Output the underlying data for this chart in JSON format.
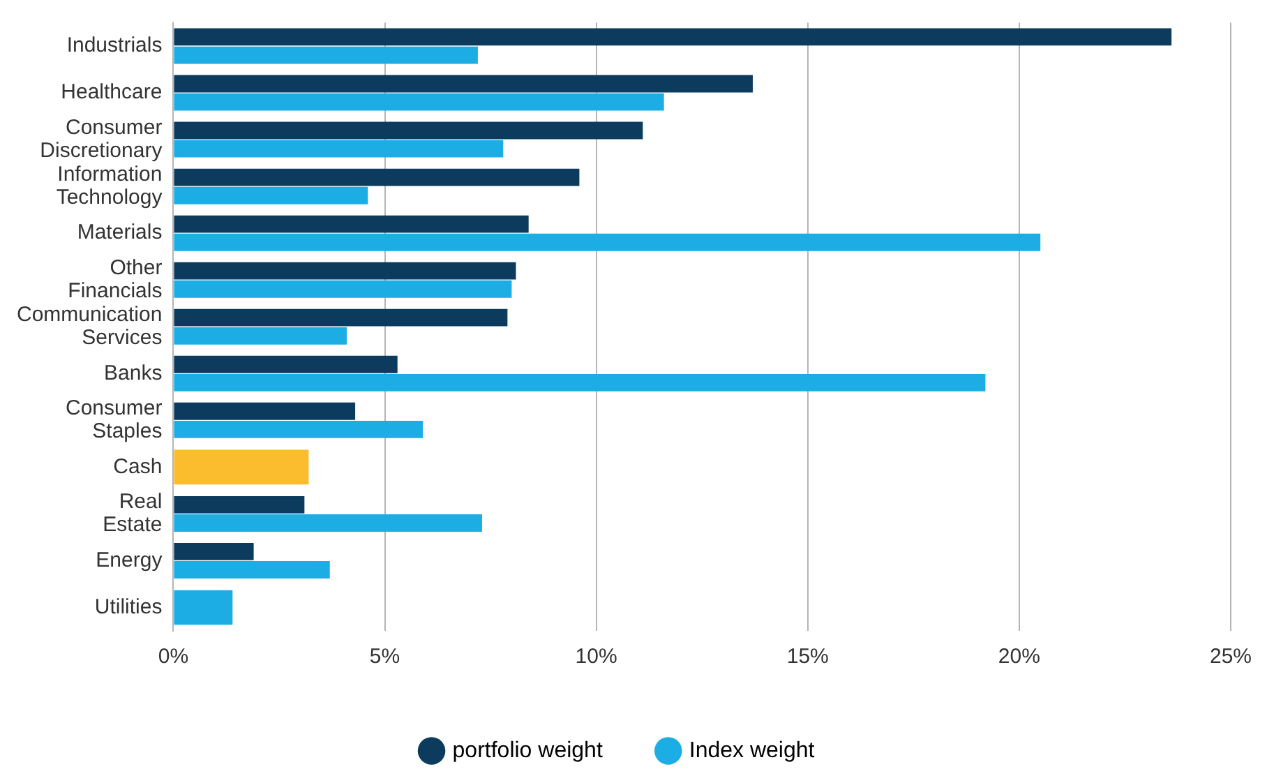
{
  "chart_data": {
    "type": "bar",
    "orientation": "horizontal",
    "categories": [
      "Industrials",
      "Healthcare",
      "Consumer Discretionary",
      "Information Technology",
      "Materials",
      "Other Financials",
      "Communication Services",
      "Banks",
      "Consumer Staples",
      "Cash",
      "Real Estate",
      "Energy",
      "Utilities"
    ],
    "series": [
      {
        "name": "portfolio weight",
        "color": "#0c3b5e",
        "colors": [
          "#0c3b5e",
          "#0c3b5e",
          "#0c3b5e",
          "#0c3b5e",
          "#0c3b5e",
          "#0c3b5e",
          "#0c3b5e",
          "#0c3b5e",
          "#0c3b5e",
          "#fbbd2e",
          "#0c3b5e",
          "#0c3b5e",
          "#0c3b5e"
        ],
        "values": [
          23.6,
          13.7,
          11.1,
          9.6,
          8.4,
          8.1,
          7.9,
          5.3,
          4.3,
          3.2,
          3.1,
          1.9,
          null
        ]
      },
      {
        "name": "Index weight",
        "color": "#1badE4",
        "values": [
          7.2,
          11.6,
          7.8,
          4.6,
          20.5,
          8.0,
          4.1,
          19.2,
          5.9,
          null,
          7.3,
          3.7,
          1.4
        ]
      }
    ],
    "xlim": [
      0,
      25
    ],
    "xticks": [
      {
        "value": 0,
        "label": "0%"
      },
      {
        "value": 5,
        "label": "5%"
      },
      {
        "value": 10,
        "label": "10%"
      },
      {
        "value": 15,
        "label": "15%"
      },
      {
        "value": 20,
        "label": "20%"
      },
      {
        "value": 25,
        "label": "25%"
      }
    ],
    "grid": "x",
    "legend": "bottom"
  }
}
